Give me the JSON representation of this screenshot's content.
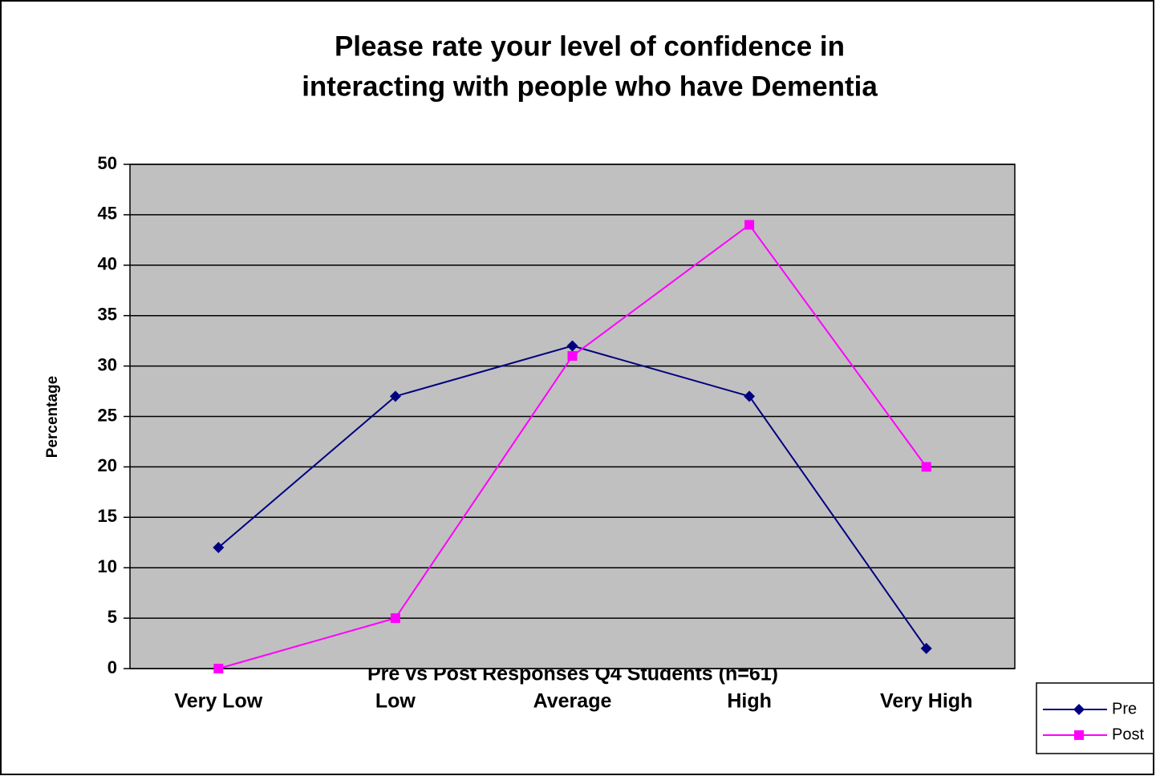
{
  "chart_data": {
    "type": "line",
    "title": [
      "Please rate your level of confidence in",
      "interacting with people who have Dementia"
    ],
    "x_label": "Pre vs Post Responses Q4 Students (n=61)",
    "y_label": "Percentage",
    "categories": [
      "Very Low",
      "Low",
      "Average",
      "High",
      "Very High"
    ],
    "series": [
      {
        "name": "Pre",
        "color": "#000080",
        "marker": "diamond",
        "values": [
          12,
          27,
          32,
          27,
          2
        ]
      },
      {
        "name": "Post",
        "color": "#ff00ff",
        "marker": "square",
        "values": [
          0,
          5,
          31,
          44,
          20
        ]
      }
    ],
    "ylim": [
      0,
      50
    ],
    "yticks": [
      0,
      5,
      10,
      15,
      20,
      25,
      30,
      35,
      40,
      45,
      50
    ],
    "grid": true,
    "plot_background": "#c0c0c0",
    "legend": "bottom-right"
  }
}
